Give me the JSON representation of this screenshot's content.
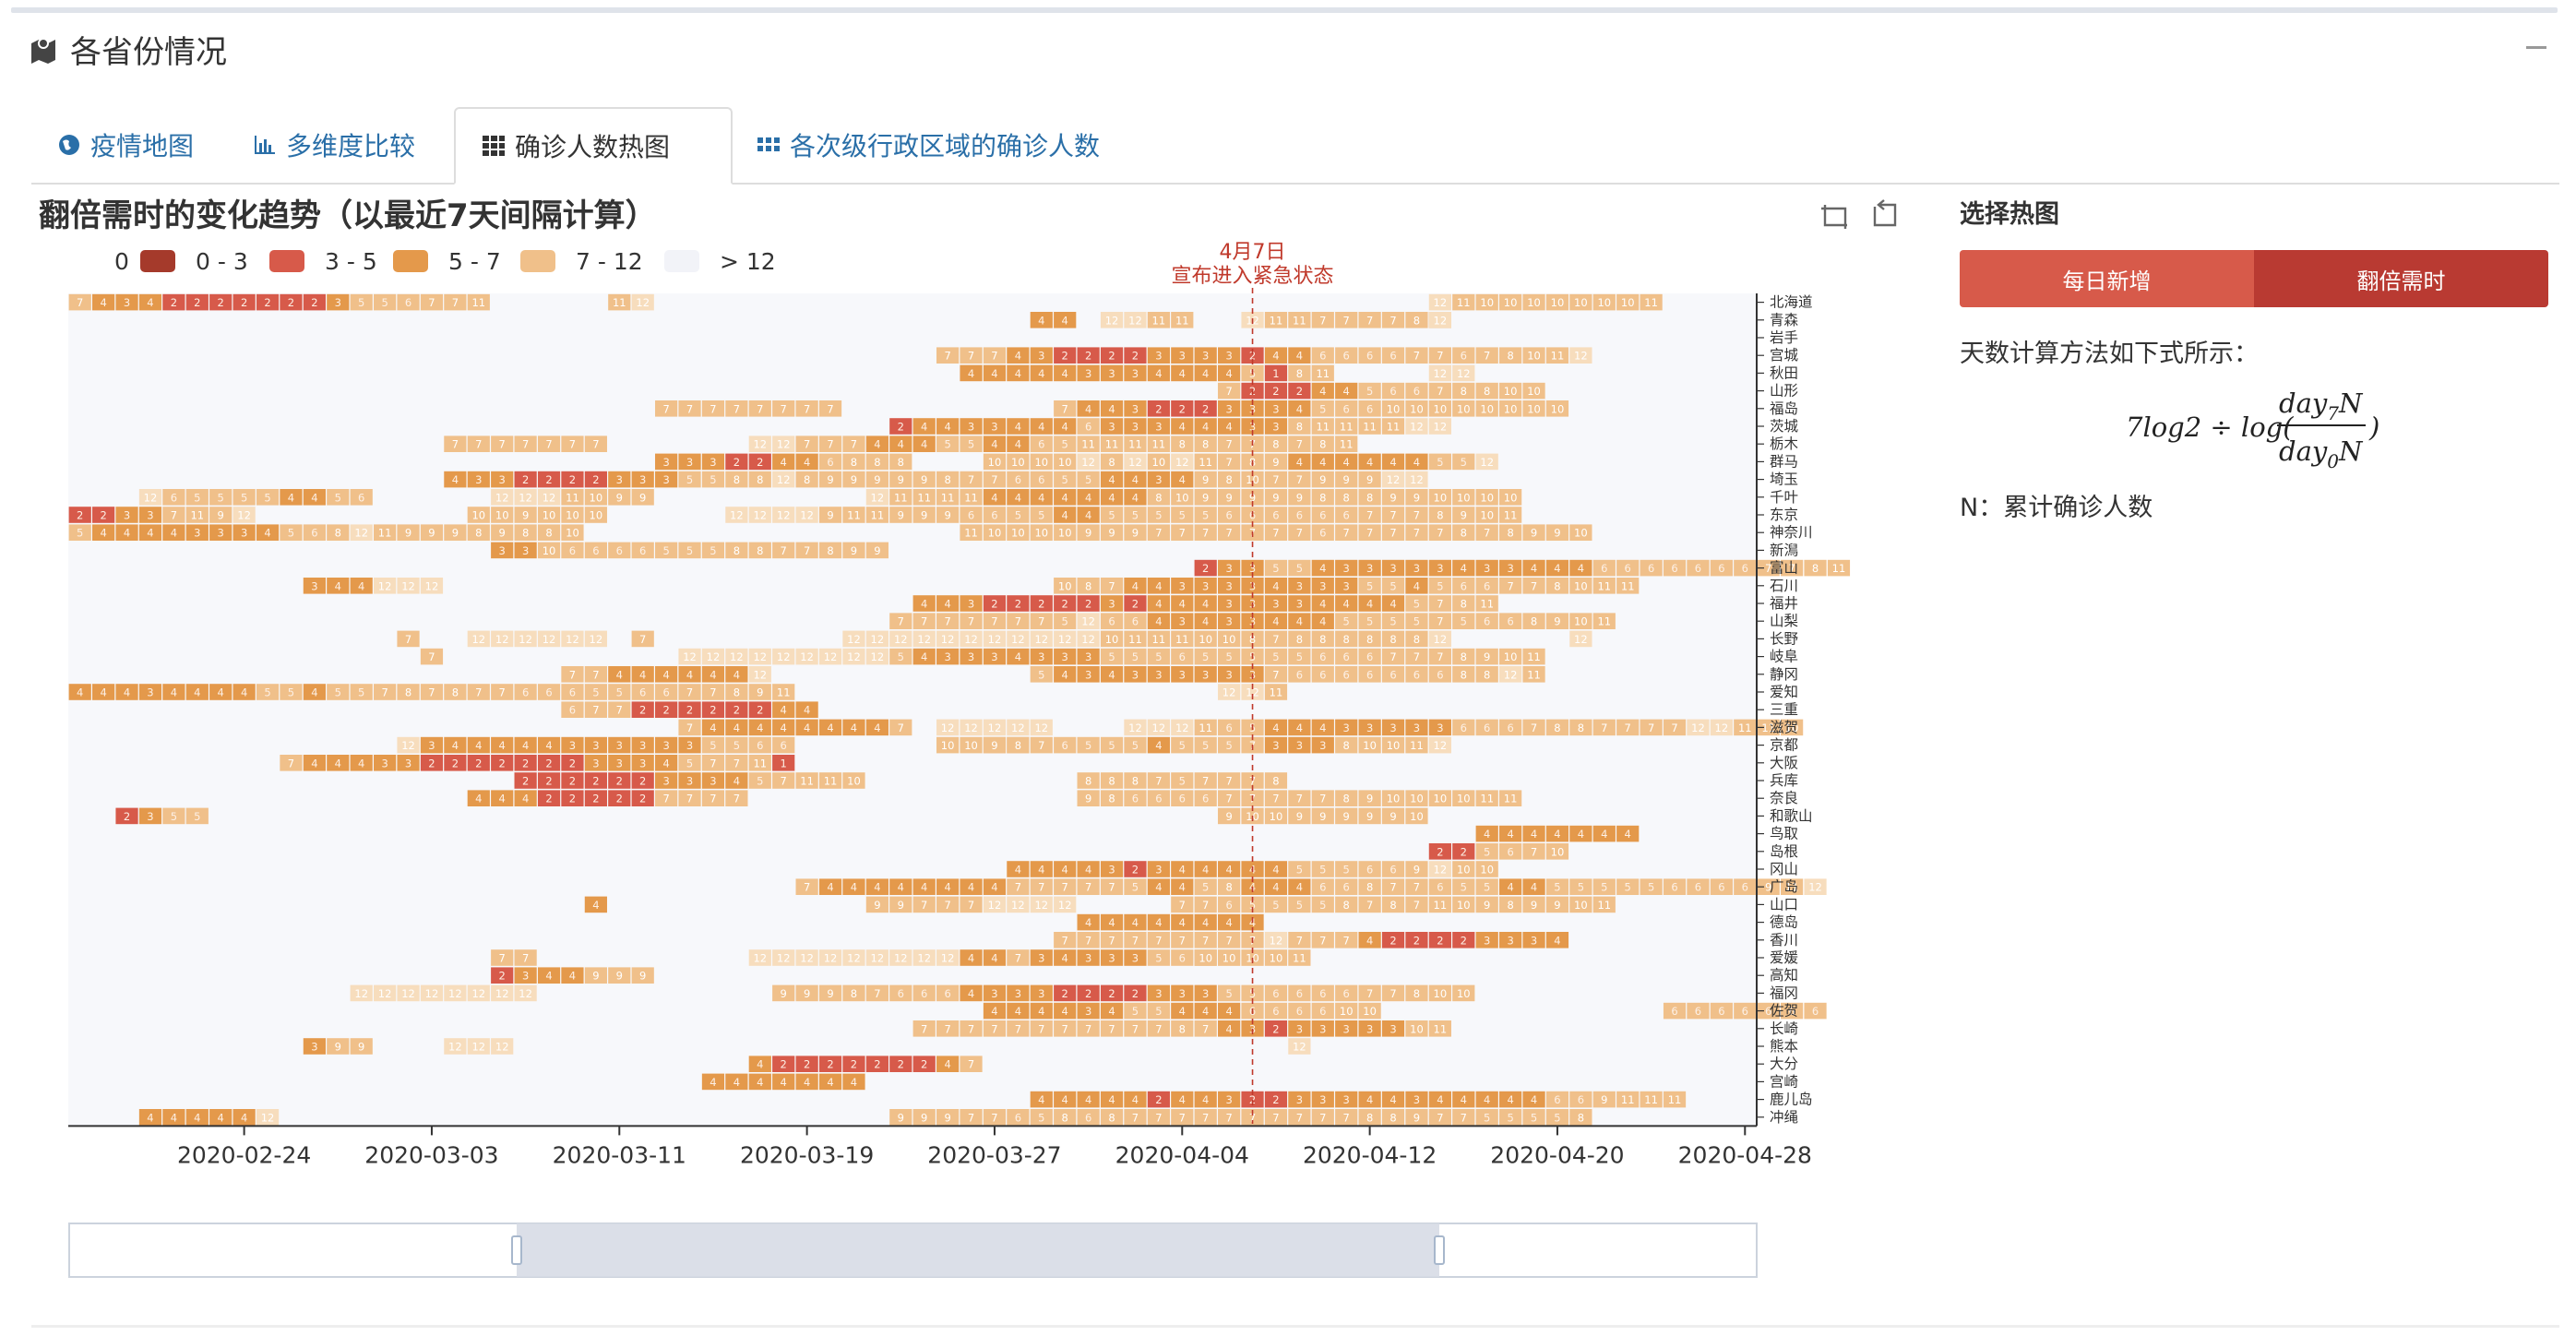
{
  "panel": {
    "title": "各省份情况"
  },
  "tabs": [
    {
      "label": "疫情地图",
      "icon": "globe-icon"
    },
    {
      "label": "多维度比较",
      "icon": "bar-chart-icon"
    },
    {
      "label": "确诊人数热图",
      "icon": "grid-icon"
    },
    {
      "label": "各次级行政区域的确诊人数",
      "icon": "dots-grid-icon"
    }
  ],
  "side": {
    "title": "选择热图",
    "button_daily": "每日新增",
    "button_doubling": "翻倍需时",
    "description": "天数计算方法如下式所示：",
    "formula": {
      "lead": "7log2 ÷ log(",
      "num_a": "day",
      "num_sub": "7",
      "num_b": "N",
      "den_a": "day",
      "den_sub": "0",
      "den_b": "N",
      "tail": ")"
    },
    "note": "N：累计确诊人数"
  },
  "chart_data": {
    "type": "heatmap",
    "title": "翻倍需时的变化趋势（以最近7天间隔计算）",
    "legend": [
      {
        "label": "0",
        "color": "#a53a2b"
      },
      {
        "label": "0 - 3",
        "color": "#d75a4a"
      },
      {
        "label": "3 - 5",
        "color": "#e4994b"
      },
      {
        "label": "5 - 7",
        "color": "#f0c08a"
      },
      {
        "label": "7 - 12",
        "color": "#f0c08a"
      },
      {
        "label": "> 12",
        "color": "#f2f3f8"
      }
    ],
    "annotation": {
      "date": "2020-04-07",
      "line1": "4月7日",
      "line2": "宣布进入紧急状态"
    },
    "x_start": "2020-02-17",
    "x_end": "2020-04-29",
    "x_ticks": [
      "2020-02-24",
      "2020-03-03",
      "2020-03-11",
      "2020-03-19",
      "2020-03-27",
      "2020-04-04",
      "2020-04-12",
      "2020-04-20",
      "2020-04-28"
    ],
    "provinces": [
      "北海道",
      "青森",
      "岩手",
      "宫城",
      "秋田",
      "山形",
      "福岛",
      "茨城",
      "栃木",
      "群马",
      "埼玉",
      "千叶",
      "东京",
      "神奈川",
      "新澙",
      "富山",
      "石川",
      "福井",
      "山梨",
      "长野",
      "岐阜",
      "静冈",
      "爱知",
      "三重",
      "滋贺",
      "京都",
      "大阪",
      "兵库",
      "奈良",
      "和歌山",
      "鸟取",
      "岛根",
      "冈山",
      "广岛",
      "山口",
      "德岛",
      "香川",
      "爱媛",
      "高知",
      "福冈",
      "佐贺",
      "长崎",
      "熊本",
      "大分",
      "宫崎",
      "鹿儿岛",
      "冲绳"
    ],
    "rows": [
      [
        "0:7434222222235567711",
        "23:1112",
        "58:12111010101010101011"
      ],
      [
        "41:44",
        "44:12121111",
        "50:121111777784",
        "58:12"
      ],
      [],
      [
        "37:7774322223333244666677678101112"
      ],
      [
        "38:44444333444451811",
        "58:1212"
      ],
      [
        "49:7222445667881010"
      ],
      [
        "25:77777777",
        "42:744322233345661010101010101010"
      ],
      [
        "35:244334446333444338111111111212"
      ],
      [
        "16:7777777",
        "29:121277744455446511111111887787811"
      ],
      [
        "25:33322446888",
        "39:10101010128121012117894444445512"
      ],
      [
        "16:4332222333558812899999877665544349810779991212"
      ],
      [
        "3:12655554456",
        "18:121212111099",
        "34:12111111114444444810999998889910101010"
      ],
      [
        "0:2233711912",
        "17:10109101010",
        "28:121212129111199966554455555666666777891011"
      ],
      [
        "0:5444433345681211999898810",
        "38:111010101099977777776777778789910"
      ],
      [
        "18:331066665558877899"
      ],
      [
        "48:23355433333433444666666677811"
      ],
      [
        "10:344121212",
        "42:10874433334333554566778101111"
      ],
      [
        "36:44322222324443333444457811"
      ],
      [
        "35:7777777512664343344455557566891011"
      ],
      [
        "14:7",
        "17:121212121212",
        "24:7",
        "33:12121212121212121212121011111110108788888812",
        "64:12"
      ],
      [
        "15:7",
        "26:121212121212121212543334333555655555666777891011"
      ],
      [
        "21:7744444412",
        "41:543433333376666666881211"
      ],
      [
        "0:44434444554557878776665566778911",
        "49:121211"
      ],
      [
        "21:67722222244"
      ],
      [
        "26:7444444447",
        "37:1212121212",
        "45:12121211654443333366678877771212111110"
      ],
      [
        "14:123444443333335566",
        "37:10101010",
        "39:987655545557333810101112"
      ],
      [
        "9:74443322222223334577111"
      ],
      [
        "19:222222333457111110",
        "43:888757778"
      ],
      [
        "17:444222227777",
        "43:9866667777789101010101111"
      ],
      [
        "2:2355",
        "49:910109999910"
      ],
      [
        "60:4444444"
      ],
      [
        "58:2256710"
      ],
      [
        "40:444432344444555669121010"
      ],
      [
        "31:7444444447777754458444668776554455555666691112"
      ],
      [
        "22:4",
        "34:9977712121212",
        "47:77655558787111098991011"
      ],
      [
        "43:44444444"
      ],
      [
        "42:77777777712777422223334"
      ],
      [
        "18:77",
        "29:121212121212121212447343335661212",
        "48:1010101011"
      ],
      [
        "18:2344999"
      ],
      [
        "12:1212121212121212",
        "30:99987666433322223335566667781010"
      ],
      [
        "39:4444345544466661010",
        "68:6666666"
      ],
      [
        "36:7777777777787432333331011"
      ],
      [
        "10:399",
        "16:121212",
        "52:12"
      ],
      [
        "29:4222222247"
      ],
      [
        "27:4444444"
      ],
      [
        "41:4444424432233344344444669111111"
      ],
      [
        "3:4444412",
        "35:999776586877777777778897755558"
      ]
    ]
  }
}
